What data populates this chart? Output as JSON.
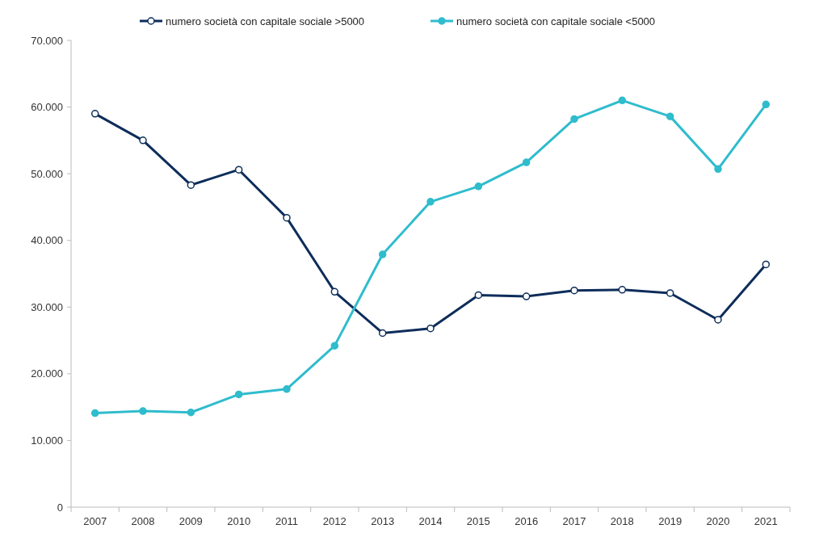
{
  "chart_data": {
    "type": "line",
    "categories": [
      "2007",
      "2008",
      "2009",
      "2010",
      "2011",
      "2012",
      "2013",
      "2014",
      "2015",
      "2016",
      "2017",
      "2018",
      "2019",
      "2020",
      "2021"
    ],
    "series": [
      {
        "name": "numero società con capitale sociale >5000",
        "color": "#0d2d5a",
        "values": [
          59000,
          55000,
          48300,
          50600,
          43400,
          32300,
          26100,
          26800,
          31800,
          31600,
          32500,
          32600,
          32100,
          28100,
          36400
        ]
      },
      {
        "name": "numero società con capitale sociale <5000",
        "color": "#2fbccd",
        "values": [
          14100,
          14400,
          14200,
          16900,
          17700,
          24200,
          37900,
          45800,
          48100,
          51700,
          58200,
          61000,
          58600,
          50700,
          60400
        ]
      }
    ],
    "ylim": [
      0,
      70000
    ],
    "yticks": [
      {
        "value": 0,
        "label": "0"
      },
      {
        "value": 10000,
        "label": "10.000"
      },
      {
        "value": 20000,
        "label": "20.000"
      },
      {
        "value": 30000,
        "label": "30.000"
      },
      {
        "value": 40000,
        "label": "40.000"
      },
      {
        "value": 50000,
        "label": "50.000"
      },
      {
        "value": 60000,
        "label": "60.000"
      },
      {
        "value": 70000,
        "label": "70.000"
      }
    ],
    "grid": false,
    "legend": "top",
    "marker": "circle"
  }
}
